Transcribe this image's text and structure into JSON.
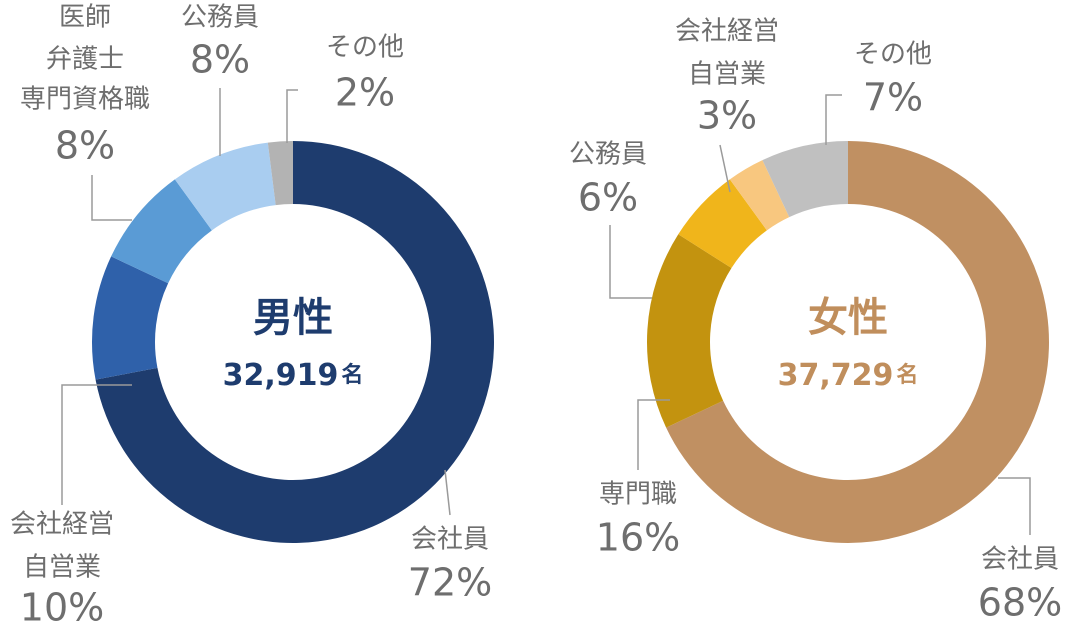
{
  "chart_data": [
    {
      "type": "pie",
      "center_label": "男性",
      "center_count": "32,919",
      "center_unit": "名",
      "center_color": "#1e3c6e",
      "categories": [
        [
          "会社員"
        ],
        [
          "会社経営",
          "自営業"
        ],
        [
          "医師",
          "弁護士",
          "専門資格職"
        ],
        [
          "公務員"
        ],
        [
          "その他"
        ]
      ],
      "values": [
        72,
        10,
        8,
        8,
        2
      ],
      "value_labels": [
        "72%",
        "10%",
        "8%",
        "8%",
        "2%"
      ],
      "colors": [
        "#1e3c6e",
        "#2f61aa",
        "#5a9bd5",
        "#a9cdf0",
        "#b3b3b3"
      ]
    },
    {
      "type": "pie",
      "center_label": "女性",
      "center_count": "37,729",
      "center_unit": "名",
      "center_color": "#c08e5c",
      "categories": [
        [
          "会社員"
        ],
        [
          "専門職"
        ],
        [
          "公務員"
        ],
        [
          "会社経営",
          "自営業"
        ],
        [
          "その他"
        ]
      ],
      "values": [
        68,
        16,
        6,
        3,
        7
      ],
      "value_labels": [
        "68%",
        "16%",
        "6%",
        "3%",
        "7%"
      ],
      "colors": [
        "#c09062",
        "#c3930f",
        "#f0b51b",
        "#f8c77f",
        "#c0c0c0"
      ]
    }
  ]
}
